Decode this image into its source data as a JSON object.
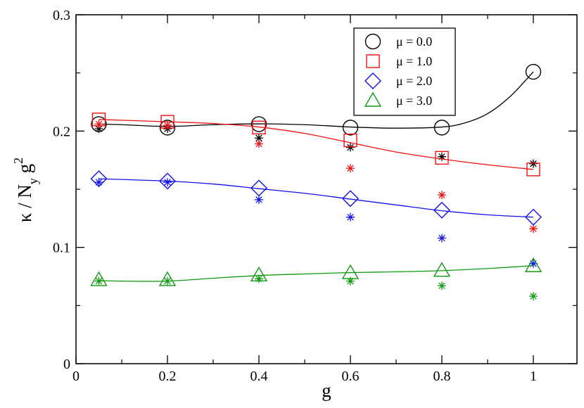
{
  "chart_data": {
    "type": "scatter",
    "title": "",
    "xlabel": "g",
    "ylabel_parts": [
      "κ / N",
      "y",
      " g",
      "2"
    ],
    "xlim": [
      0,
      1.1
    ],
    "ylim": [
      0,
      0.3
    ],
    "x_ticks": [
      0,
      0.2,
      0.4,
      0.6,
      0.8,
      1.0
    ],
    "x_tick_labels": [
      "0",
      "0.2",
      "0.4",
      "0.6",
      "0.8",
      "1"
    ],
    "y_ticks": [
      0,
      0.1,
      0.2,
      0.3
    ],
    "y_tick_labels": [
      "0",
      "0.1",
      "0.2",
      "0.3"
    ],
    "legend_position": "top-right",
    "series": [
      {
        "name": "μ = 0.0",
        "color": "#000000",
        "marker": "circle",
        "x": [
          0.05,
          0.2,
          0.4,
          0.6,
          0.8,
          1.0
        ],
        "values": [
          0.206,
          0.203,
          0.206,
          0.203,
          0.203,
          0.251
        ],
        "star_values": [
          0.202,
          0.202,
          0.194,
          0.186,
          0.178,
          0.172
        ],
        "fit_curve": [
          [
            0.05,
            0.206
          ],
          [
            0.1,
            0.2055
          ],
          [
            0.2,
            0.204
          ],
          [
            0.3,
            0.2055
          ],
          [
            0.4,
            0.2062
          ],
          [
            0.5,
            0.2055
          ],
          [
            0.6,
            0.2035
          ],
          [
            0.7,
            0.2025
          ],
          [
            0.8,
            0.2035
          ],
          [
            0.85,
            0.207
          ],
          [
            0.9,
            0.215
          ],
          [
            0.95,
            0.23
          ],
          [
            1.0,
            0.251
          ]
        ]
      },
      {
        "name": "μ = 1.0",
        "color": "#ee1111",
        "marker": "square",
        "x": [
          0.05,
          0.2,
          0.4,
          0.6,
          0.8,
          1.0
        ],
        "values": [
          0.21,
          0.208,
          0.203,
          0.192,
          0.177,
          0.167
        ],
        "star_values": [
          0.206,
          0.205,
          0.189,
          0.168,
          0.145,
          0.116
        ],
        "fit_curve": [
          [
            0.05,
            0.21
          ],
          [
            0.2,
            0.208
          ],
          [
            0.3,
            0.2065
          ],
          [
            0.4,
            0.2035
          ],
          [
            0.5,
            0.198
          ],
          [
            0.6,
            0.19
          ],
          [
            0.7,
            0.182
          ],
          [
            0.8,
            0.176
          ],
          [
            0.9,
            0.171
          ],
          [
            1.0,
            0.167
          ]
        ]
      },
      {
        "name": "μ = 2.0",
        "color": "#1111ee",
        "marker": "diamond",
        "x": [
          0.05,
          0.2,
          0.4,
          0.6,
          0.8,
          1.0
        ],
        "values": [
          0.159,
          0.157,
          0.151,
          0.142,
          0.132,
          0.126
        ],
        "star_values": [
          0.156,
          0.156,
          0.141,
          0.126,
          0.108,
          0.086
        ],
        "fit_curve": [
          [
            0.05,
            0.159
          ],
          [
            0.2,
            0.157
          ],
          [
            0.3,
            0.1545
          ],
          [
            0.4,
            0.1505
          ],
          [
            0.5,
            0.1465
          ],
          [
            0.6,
            0.1415
          ],
          [
            0.7,
            0.1365
          ],
          [
            0.8,
            0.1315
          ],
          [
            0.9,
            0.128
          ],
          [
            1.0,
            0.126
          ]
        ]
      },
      {
        "name": "μ = 3.0",
        "color": "#119911",
        "marker": "triangle",
        "x": [
          0.05,
          0.2,
          0.4,
          0.6,
          0.8,
          1.0
        ],
        "values": [
          0.072,
          0.072,
          0.076,
          0.078,
          0.08,
          0.084
        ],
        "star_values": [
          0.071,
          0.071,
          0.073,
          0.071,
          0.067,
          0.058
        ],
        "fit_curve": [
          [
            0.05,
            0.0715
          ],
          [
            0.1,
            0.071
          ],
          [
            0.2,
            0.071
          ],
          [
            0.3,
            0.0735
          ],
          [
            0.4,
            0.0758
          ],
          [
            0.5,
            0.0772
          ],
          [
            0.6,
            0.0783
          ],
          [
            0.7,
            0.079
          ],
          [
            0.8,
            0.08
          ],
          [
            0.9,
            0.0818
          ],
          [
            1.0,
            0.0843
          ]
        ]
      }
    ]
  }
}
